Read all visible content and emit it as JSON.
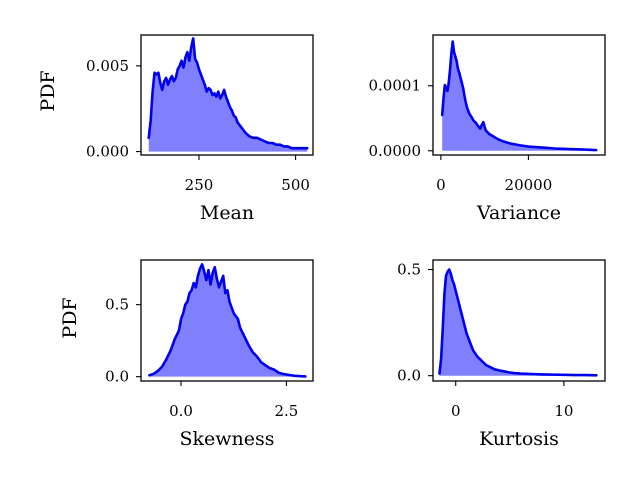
{
  "colors": {
    "line": "#0000ee",
    "fill": "#8080ff",
    "frame": "#000000"
  },
  "chart_data": [
    {
      "type": "area",
      "xlabel": "Mean",
      "ylabel": "PDF",
      "xlim": [
        100,
        545
      ],
      "ylim": [
        -0.0002,
        0.0068
      ],
      "xticks": [
        {
          "value": 250,
          "label": "250"
        },
        {
          "value": 500,
          "label": "500"
        }
      ],
      "yticks": [
        {
          "value": 0.0,
          "label": "0.000"
        },
        {
          "value": 0.005,
          "label": "0.005"
        }
      ],
      "x": [
        120,
        125,
        130,
        135,
        140,
        145,
        150,
        155,
        160,
        165,
        170,
        175,
        180,
        185,
        190,
        195,
        200,
        205,
        210,
        215,
        220,
        225,
        230,
        235,
        240,
        245,
        250,
        255,
        260,
        265,
        270,
        275,
        280,
        285,
        290,
        295,
        300,
        305,
        310,
        315,
        320,
        325,
        330,
        335,
        340,
        345,
        350,
        360,
        370,
        380,
        390,
        400,
        410,
        420,
        430,
        440,
        450,
        460,
        470,
        480,
        490,
        500,
        510,
        520,
        530
      ],
      "y": [
        0.0008,
        0.0018,
        0.0035,
        0.0046,
        0.0045,
        0.0046,
        0.004,
        0.0036,
        0.0041,
        0.0043,
        0.0039,
        0.0042,
        0.0044,
        0.0041,
        0.0043,
        0.0048,
        0.005,
        0.0053,
        0.0049,
        0.0055,
        0.0058,
        0.0053,
        0.0061,
        0.0066,
        0.0054,
        0.0052,
        0.0048,
        0.0045,
        0.0042,
        0.0039,
        0.0035,
        0.0037,
        0.0036,
        0.0033,
        0.0034,
        0.0032,
        0.0035,
        0.0031,
        0.0033,
        0.0036,
        0.0032,
        0.0029,
        0.0026,
        0.0024,
        0.0021,
        0.002,
        0.0017,
        0.0014,
        0.0011,
        0.0009,
        0.0008,
        0.0008,
        0.0007,
        0.0006,
        0.0005,
        0.0005,
        0.0004,
        0.0004,
        0.0003,
        0.0003,
        0.0002,
        0.0002,
        0.0002,
        0.0002,
        0.0002
      ]
    },
    {
      "type": "area",
      "xlabel": "Variance",
      "ylabel": "",
      "xlim": [
        -1800,
        37500
      ],
      "ylim": [
        -6.5e-06,
        0.000178
      ],
      "xticks": [
        {
          "value": 0,
          "label": "0"
        },
        {
          "value": 20000,
          "label": "20000"
        }
      ],
      "yticks": [
        {
          "value": 0.0,
          "label": "0.0000"
        },
        {
          "value": 0.0001,
          "label": "0.0001"
        }
      ],
      "x": [
        300,
        600,
        900,
        1200,
        1500,
        1800,
        2100,
        2400,
        2700,
        3000,
        3300,
        3600,
        3900,
        4200,
        4500,
        4800,
        5100,
        5400,
        5700,
        6000,
        6500,
        7000,
        7500,
        8000,
        8500,
        9000,
        9300,
        9700,
        10200,
        11000,
        12000,
        13000,
        14000,
        15000,
        16000,
        18000,
        20000,
        22000,
        24000,
        26000,
        28000,
        30000,
        32000,
        34000,
        35500
      ],
      "y": [
        5.5e-05,
        8e-05,
        0.000101,
        9.7e-05,
        9.2e-05,
        0.000105,
        0.000125,
        0.00015,
        0.000168,
        0.000152,
        0.000145,
        0.000138,
        0.000126,
        0.00012,
        0.000112,
        0.000104,
        9.6e-05,
        8.4e-05,
        7.4e-05,
        6.6e-05,
        5.7e-05,
        5.2e-05,
        4.6e-05,
        4.3e-05,
        3.8e-05,
        3.4e-05,
        3.9e-05,
        4.4e-05,
        3.2e-05,
        2.6e-05,
        2.2e-05,
        1.8e-05,
        1.5e-05,
        1.3e-05,
        1.1e-05,
        8.5e-06,
        6.5e-06,
        5.5e-06,
        4.5e-06,
        3.5e-06,
        3e-06,
        2.5e-06,
        2e-06,
        1.5e-06,
        1e-06
      ]
    },
    {
      "type": "area",
      "xlabel": "Skewness",
      "ylabel": "PDF",
      "xlim": [
        -0.95,
        3.13
      ],
      "ylim": [
        -0.03,
        0.81
      ],
      "xticks": [
        {
          "value": 0.0,
          "label": "0.0"
        },
        {
          "value": 2.5,
          "label": "2.5"
        }
      ],
      "yticks": [
        {
          "value": 0.0,
          "label": "0.0"
        },
        {
          "value": 0.5,
          "label": "0.5"
        }
      ],
      "x": [
        -0.75,
        -0.65,
        -0.55,
        -0.45,
        -0.35,
        -0.25,
        -0.15,
        -0.05,
        0.0,
        0.05,
        0.1,
        0.15,
        0.2,
        0.25,
        0.3,
        0.35,
        0.4,
        0.45,
        0.5,
        0.55,
        0.6,
        0.65,
        0.7,
        0.75,
        0.8,
        0.85,
        0.9,
        0.95,
        1.0,
        1.05,
        1.1,
        1.15,
        1.2,
        1.25,
        1.3,
        1.35,
        1.4,
        1.5,
        1.6,
        1.7,
        1.8,
        1.9,
        2.0,
        2.1,
        2.2,
        2.3,
        2.4,
        2.5,
        2.6,
        2.7,
        2.8,
        2.95
      ],
      "y": [
        0.01,
        0.02,
        0.04,
        0.07,
        0.12,
        0.18,
        0.26,
        0.32,
        0.4,
        0.44,
        0.5,
        0.52,
        0.58,
        0.6,
        0.65,
        0.62,
        0.7,
        0.75,
        0.78,
        0.73,
        0.67,
        0.74,
        0.64,
        0.72,
        0.76,
        0.68,
        0.62,
        0.66,
        0.7,
        0.58,
        0.6,
        0.52,
        0.48,
        0.44,
        0.42,
        0.4,
        0.34,
        0.28,
        0.22,
        0.17,
        0.14,
        0.1,
        0.08,
        0.06,
        0.05,
        0.03,
        0.02,
        0.015,
        0.01,
        0.006,
        0.004,
        0.002
      ]
    },
    {
      "type": "area",
      "xlabel": "Kurtosis",
      "ylabel": "",
      "xlim": [
        -2.1,
        13.8
      ],
      "ylim": [
        -0.025,
        0.545
      ],
      "xticks": [
        {
          "value": 0,
          "label": "0"
        },
        {
          "value": 10,
          "label": "10"
        }
      ],
      "yticks": [
        {
          "value": 0.0,
          "label": "0.0"
        },
        {
          "value": 0.5,
          "label": "0.5"
        }
      ],
      "x": [
        -1.5,
        -1.35,
        -1.2,
        -1.05,
        -0.9,
        -0.75,
        -0.6,
        -0.45,
        -0.3,
        -0.15,
        0.0,
        0.2,
        0.4,
        0.6,
        0.8,
        1.0,
        1.3,
        1.6,
        2.0,
        2.4,
        2.8,
        3.2,
        3.6,
        4.0,
        4.5,
        5.0,
        5.5,
        6.0,
        7.0,
        8.0,
        9.0,
        10.0,
        11.0,
        12.0,
        13.0
      ],
      "y": [
        0.01,
        0.08,
        0.22,
        0.38,
        0.47,
        0.49,
        0.5,
        0.48,
        0.45,
        0.43,
        0.4,
        0.36,
        0.32,
        0.28,
        0.24,
        0.2,
        0.16,
        0.12,
        0.09,
        0.07,
        0.05,
        0.04,
        0.03,
        0.025,
        0.02,
        0.015,
        0.012,
        0.01,
        0.008,
        0.006,
        0.005,
        0.004,
        0.003,
        0.003,
        0.002
      ]
    }
  ]
}
